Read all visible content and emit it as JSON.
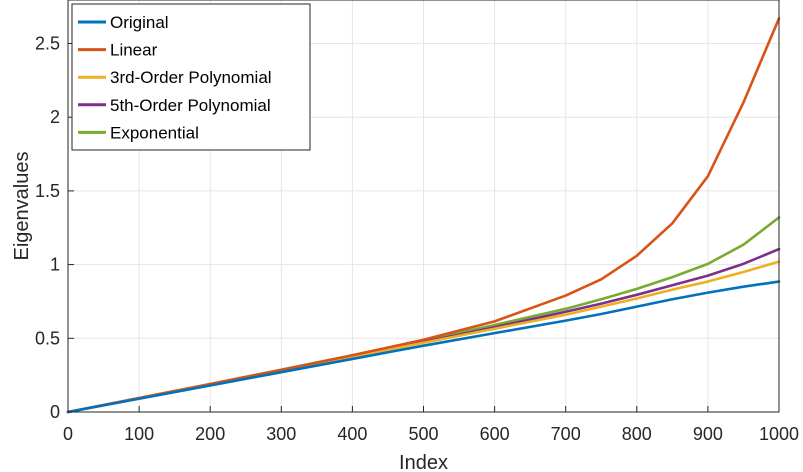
{
  "chart_data": {
    "type": "line",
    "xlabel": "Index",
    "ylabel": "Eigenvalues",
    "xlim": [
      0,
      1000
    ],
    "ylim": [
      0,
      2.6
    ],
    "xticks": [
      0,
      100,
      200,
      300,
      400,
      500,
      600,
      700,
      800,
      900,
      1000
    ],
    "xtick_labels": [
      "0",
      "100",
      "200",
      "300",
      "400",
      "500",
      "600",
      "700",
      "800",
      "900",
      "1000"
    ],
    "yticks": [
      0,
      0.5,
      1,
      1.5,
      2,
      2.5
    ],
    "ytick_labels": [
      "0",
      "0.5",
      "1",
      "1.5",
      "2",
      "2.5"
    ],
    "grid": true,
    "legend_position": "top-left",
    "x": [
      0,
      100,
      200,
      300,
      400,
      500,
      600,
      700,
      750,
      800,
      850,
      900,
      950,
      1000
    ],
    "series": [
      {
        "name": "Original",
        "color": "#0072BD",
        "values": [
          0,
          0.09,
          0.18,
          0.27,
          0.36,
          0.45,
          0.535,
          0.62,
          0.665,
          0.715,
          0.765,
          0.81,
          0.85,
          0.885
        ]
      },
      {
        "name": "Linear",
        "color": "#D95319",
        "values": [
          0,
          0.095,
          0.19,
          0.285,
          0.385,
          0.49,
          0.615,
          0.79,
          0.9,
          1.06,
          1.28,
          1.6,
          2.1,
          2.67
        ]
      },
      {
        "name": "3rd-Order Polynomial",
        "color": "#EDB120",
        "values": [
          0,
          0.092,
          0.185,
          0.28,
          0.375,
          0.47,
          0.565,
          0.66,
          0.715,
          0.77,
          0.83,
          0.885,
          0.95,
          1.02
        ]
      },
      {
        "name": "5th-Order Polynomial",
        "color": "#7E2F8E",
        "values": [
          0,
          0.093,
          0.187,
          0.282,
          0.378,
          0.475,
          0.575,
          0.68,
          0.735,
          0.795,
          0.86,
          0.925,
          1.005,
          1.105
        ]
      },
      {
        "name": "Exponential",
        "color": "#77AC30",
        "values": [
          0,
          0.095,
          0.19,
          0.287,
          0.385,
          0.485,
          0.59,
          0.7,
          0.765,
          0.835,
          0.915,
          1.005,
          1.135,
          1.32
        ]
      }
    ]
  }
}
